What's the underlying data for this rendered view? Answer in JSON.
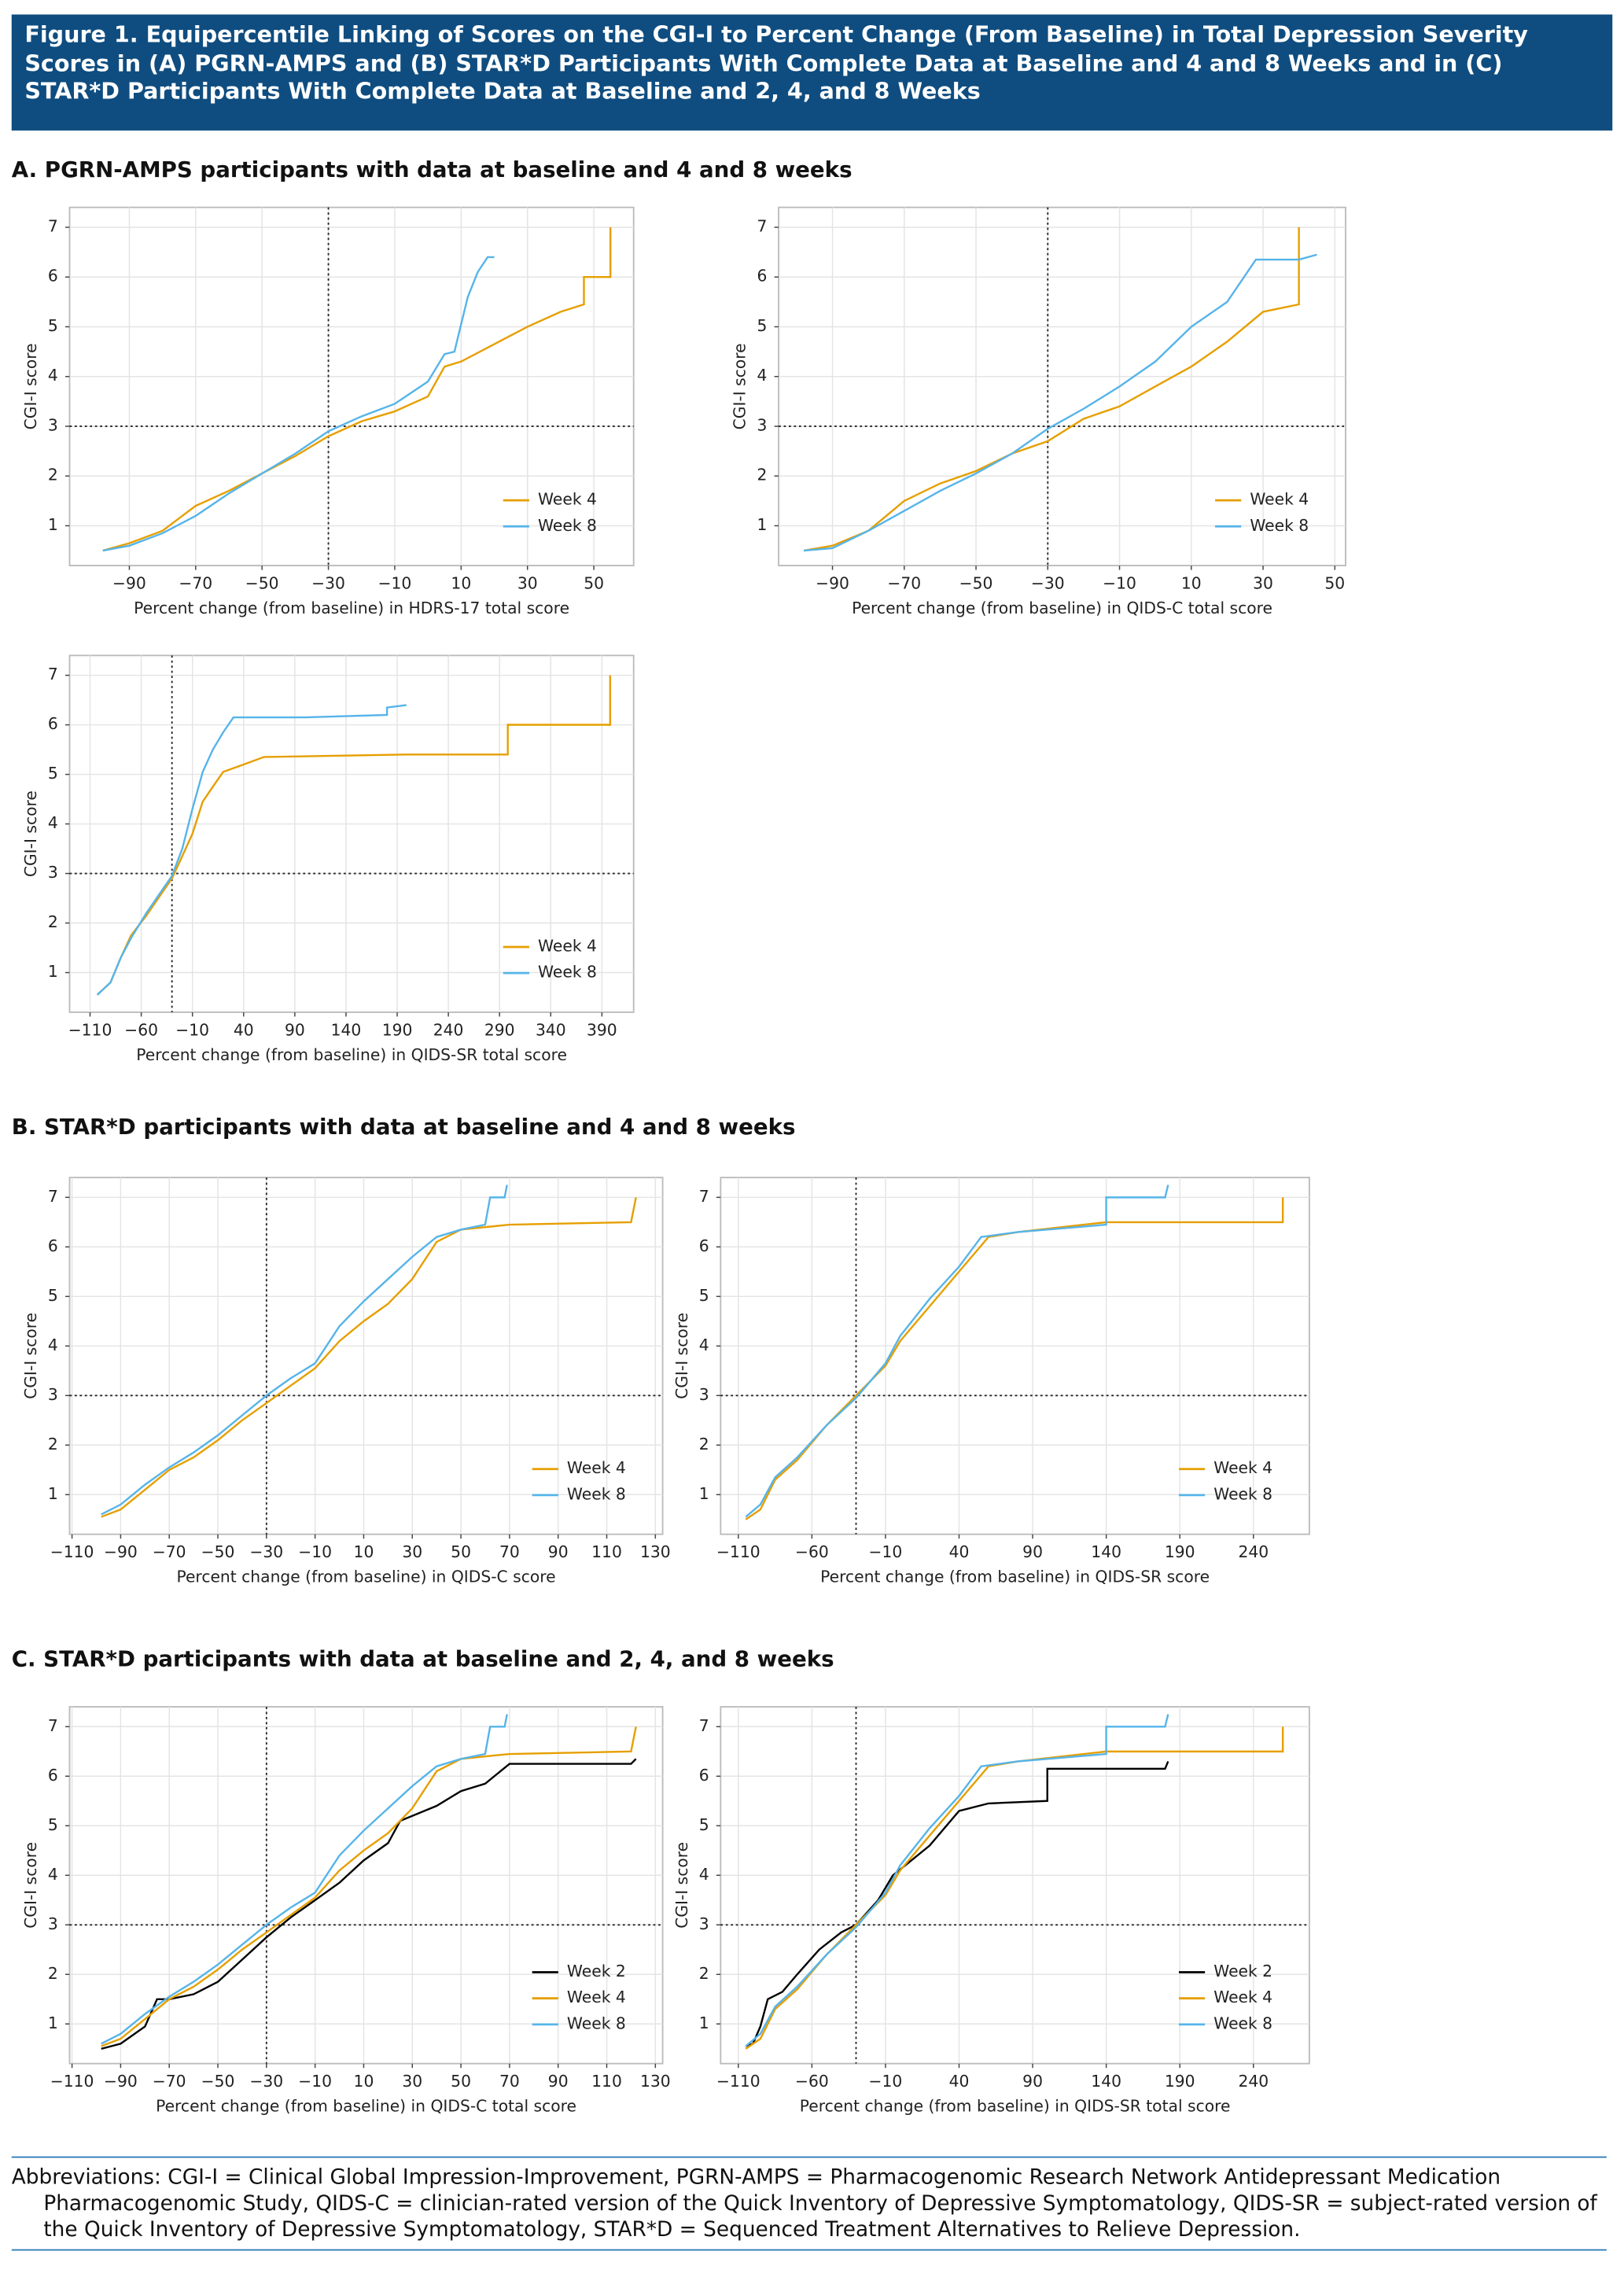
{
  "figure": {
    "title": "Figure 1. Equipercentile Linking of Scores on the CGI-I to Percent Change (From Baseline) in Total Depression Severity Scores in (A) PGRN-AMPS and (B) STAR*D Participants With Complete Data at Baseline and 4 and 8 Weeks and in (C) STAR*D Participants With Complete Data at Baseline and 2, 4, and 8 Weeks",
    "sections": [
      "A. PGRN-AMPS participants with data at baseline and 4 and 8 weeks",
      "B. STAR*D participants with data at baseline and 4 and 8 weeks",
      "C. STAR*D participants with data at baseline and 2, 4, and 8 weeks"
    ],
    "footnote": "Abbreviations: CGI-I = Clinical Global Impression-Improvement, PGRN-AMPS = Pharmacogenomic Research Network Antidepressant Medication Pharmacogenomic Study, QIDS-C = clinician-rated version of the Quick Inventory of Depressive Symptomatology, QIDS-SR = subject-rated version of the Quick Inventory of Depressive Symptomatology, STAR*D = Sequenced Treatment Alternatives to Relieve Depression."
  },
  "chart_data": [
    {
      "type": "line",
      "xlabel": "Percent change (from baseline) in HDRS-17 total score",
      "ylabel": "CGI-I score",
      "xlim": [
        -108,
        62
      ],
      "ylim": [
        0.2,
        7.4
      ],
      "xticks": [
        {
          "value": -90,
          "label": "−90"
        },
        {
          "value": -70,
          "label": "−70"
        },
        {
          "value": -50,
          "label": "−50"
        },
        {
          "value": -30,
          "label": "−30"
        },
        {
          "value": -10,
          "label": "−10"
        },
        10,
        30,
        50
      ],
      "yticks": [
        1,
        2,
        3,
        4,
        5,
        6,
        7
      ],
      "grid": true,
      "ref_x": -30,
      "ref_y": 3,
      "legend": "lower right",
      "series": [
        {
          "name": "Week 4",
          "color": "#E69F00",
          "x": [
            -98,
            -90,
            -80,
            -70,
            -60,
            -50,
            -40,
            -30,
            -20,
            -10,
            0,
            5,
            10,
            20,
            30,
            40,
            47,
            47,
            55,
            55
          ],
          "values": [
            0.5,
            0.65,
            0.9,
            1.4,
            1.7,
            2.05,
            2.4,
            2.8,
            3.1,
            3.3,
            3.6,
            4.2,
            4.3,
            4.65,
            5.0,
            5.3,
            5.45,
            6.0,
            6.0,
            7.0
          ]
        },
        {
          "name": "Week 8",
          "color": "#56B4E9",
          "x": [
            -98,
            -90,
            -80,
            -70,
            -60,
            -50,
            -40,
            -30,
            -20,
            -10,
            0,
            5,
            8,
            12,
            15,
            18,
            20
          ],
          "values": [
            0.5,
            0.6,
            0.85,
            1.2,
            1.65,
            2.05,
            2.45,
            2.9,
            3.2,
            3.45,
            3.9,
            4.45,
            4.5,
            5.6,
            6.1,
            6.4,
            6.4
          ]
        }
      ]
    },
    {
      "type": "line",
      "xlabel": "Percent change (from baseline) in QIDS-C total score",
      "ylabel": "CGI-I score",
      "xlim": [
        -105,
        53
      ],
      "ylim": [
        0.2,
        7.4
      ],
      "xticks": [
        {
          "value": -90,
          "label": "−90"
        },
        {
          "value": -70,
          "label": "−70"
        },
        {
          "value": -50,
          "label": "−50"
        },
        {
          "value": -30,
          "label": "−30"
        },
        {
          "value": -10,
          "label": "−10"
        },
        10,
        30,
        50
      ],
      "yticks": [
        1,
        2,
        3,
        4,
        5,
        6,
        7
      ],
      "grid": true,
      "ref_x": -30,
      "ref_y": 3,
      "legend": "lower right",
      "series": [
        {
          "name": "Week 4",
          "color": "#E69F00",
          "x": [
            -98,
            -90,
            -80,
            -70,
            -60,
            -50,
            -40,
            -30,
            -20,
            -10,
            0,
            10,
            20,
            30,
            40,
            40
          ],
          "values": [
            0.5,
            0.6,
            0.9,
            1.5,
            1.85,
            2.1,
            2.45,
            2.7,
            3.15,
            3.4,
            3.8,
            4.2,
            4.7,
            5.3,
            5.45,
            7.0
          ]
        },
        {
          "name": "Week 8",
          "color": "#56B4E9",
          "x": [
            -98,
            -90,
            -80,
            -70,
            -60,
            -50,
            -40,
            -30,
            -20,
            -10,
            0,
            10,
            20,
            28,
            40,
            45
          ],
          "values": [
            0.5,
            0.55,
            0.9,
            1.3,
            1.7,
            2.05,
            2.45,
            2.95,
            3.35,
            3.8,
            4.3,
            5.0,
            5.5,
            6.35,
            6.35,
            6.45
          ]
        }
      ]
    },
    {
      "type": "line",
      "xlabel": "Percent change (from baseline) in QIDS-SR total score",
      "ylabel": "CGI-I score",
      "xlim": [
        -130,
        421
      ],
      "ylim": [
        0.2,
        7.4
      ],
      "xticks": [
        {
          "value": -110,
          "label": "−110"
        },
        {
          "value": -60,
          "label": "−60"
        },
        {
          "value": -10,
          "label": "−10"
        },
        40,
        90,
        140,
        190,
        240,
        290,
        340,
        390
      ],
      "yticks": [
        1,
        2,
        3,
        4,
        5,
        6,
        7
      ],
      "grid": true,
      "ref_x": -30,
      "ref_y": 3,
      "legend": "lower right",
      "series": [
        {
          "name": "Week 4",
          "color": "#E69F00",
          "x": [
            -103,
            -90,
            -80,
            -70,
            -55,
            -40,
            -30,
            -20,
            -10,
            0,
            10,
            20,
            40,
            60,
            200,
            298,
            298,
            398,
            398
          ],
          "values": [
            0.55,
            0.8,
            1.3,
            1.75,
            2.15,
            2.6,
            2.9,
            3.35,
            3.8,
            4.45,
            4.75,
            5.05,
            5.2,
            5.35,
            5.4,
            5.4,
            6.0,
            6.0,
            7.0
          ]
        },
        {
          "name": "Week 8",
          "color": "#56B4E9",
          "x": [
            -103,
            -90,
            -80,
            -70,
            -55,
            -40,
            -30,
            -20,
            -10,
            0,
            10,
            20,
            30,
            100,
            180,
            180,
            199
          ],
          "values": [
            0.55,
            0.8,
            1.3,
            1.7,
            2.2,
            2.65,
            2.95,
            3.5,
            4.3,
            5.05,
            5.5,
            5.85,
            6.15,
            6.15,
            6.2,
            6.35,
            6.4
          ]
        }
      ]
    },
    {
      "type": "line",
      "xlabel": "Percent change (from baseline) in QIDS-C score",
      "ylabel": "CGI-I score",
      "xlim": [
        -111,
        133
      ],
      "ylim": [
        0.2,
        7.4
      ],
      "xticks": [
        {
          "value": -110,
          "label": "−110"
        },
        {
          "value": -90,
          "label": "−90"
        },
        {
          "value": -70,
          "label": "−70"
        },
        {
          "value": -50,
          "label": "−50"
        },
        {
          "value": -30,
          "label": "−30"
        },
        {
          "value": -10,
          "label": "−10"
        },
        10,
        30,
        50,
        70,
        90,
        110,
        130
      ],
      "yticks": [
        1,
        2,
        3,
        4,
        5,
        6,
        7
      ],
      "grid": true,
      "ref_x": -30,
      "ref_y": 3,
      "legend": "lower right",
      "series": [
        {
          "name": "Week 4",
          "color": "#E69F00",
          "x": [
            -98,
            -90,
            -80,
            -70,
            -60,
            -50,
            -40,
            -30,
            -20,
            -10,
            0,
            10,
            20,
            30,
            40,
            50,
            70,
            120,
            122
          ],
          "values": [
            0.55,
            0.7,
            1.1,
            1.5,
            1.75,
            2.1,
            2.5,
            2.85,
            3.2,
            3.55,
            4.1,
            4.5,
            4.85,
            5.35,
            6.1,
            6.35,
            6.45,
            6.5,
            7.0
          ]
        },
        {
          "name": "Week 8",
          "color": "#56B4E9",
          "x": [
            -98,
            -90,
            -80,
            -70,
            -60,
            -50,
            -40,
            -30,
            -20,
            -10,
            0,
            10,
            20,
            30,
            40,
            50,
            60,
            62,
            68,
            69
          ],
          "values": [
            0.6,
            0.8,
            1.2,
            1.55,
            1.85,
            2.2,
            2.6,
            3.0,
            3.35,
            3.65,
            4.4,
            4.9,
            5.35,
            5.8,
            6.2,
            6.35,
            6.45,
            7.0,
            7.0,
            7.25
          ]
        }
      ]
    },
    {
      "type": "line",
      "xlabel": "Percent change (from baseline) in QIDS-SR score",
      "ylabel": "CGI-I score",
      "xlim": [
        -122,
        278
      ],
      "ylim": [
        0.2,
        7.4
      ],
      "xticks": [
        {
          "value": -110,
          "label": "−110"
        },
        {
          "value": -60,
          "label": "−60"
        },
        {
          "value": -10,
          "label": "−10"
        },
        40,
        90,
        140,
        190,
        240
      ],
      "yticks": [
        1,
        2,
        3,
        4,
        5,
        6,
        7
      ],
      "grid": true,
      "ref_x": -30,
      "ref_y": 3,
      "legend": "lower right",
      "series": [
        {
          "name": "Week 4",
          "color": "#E69F00",
          "x": [
            -105,
            -95,
            -85,
            -70,
            -50,
            -30,
            -10,
            0,
            20,
            40,
            60,
            80,
            140,
            260,
            260
          ],
          "values": [
            0.5,
            0.7,
            1.3,
            1.7,
            2.4,
            3.0,
            3.6,
            4.1,
            4.8,
            5.5,
            6.2,
            6.3,
            6.5,
            6.5,
            7.0
          ]
        },
        {
          "name": "Week 8",
          "color": "#56B4E9",
          "x": [
            -105,
            -95,
            -85,
            -70,
            -50,
            -30,
            -10,
            0,
            20,
            40,
            55,
            80,
            140,
            140,
            180,
            182
          ],
          "values": [
            0.55,
            0.8,
            1.35,
            1.75,
            2.4,
            2.95,
            3.65,
            4.2,
            4.95,
            5.6,
            6.2,
            6.3,
            6.45,
            7.0,
            7.0,
            7.25
          ]
        }
      ]
    },
    {
      "type": "line",
      "xlabel": "Percent change (from baseline) in QIDS-C total score",
      "ylabel": "CGI-I score",
      "xlim": [
        -111,
        133
      ],
      "ylim": [
        0.2,
        7.4
      ],
      "xticks": [
        {
          "value": -110,
          "label": "−110"
        },
        {
          "value": -90,
          "label": "−90"
        },
        {
          "value": -70,
          "label": "−70"
        },
        {
          "value": -50,
          "label": "−50"
        },
        {
          "value": -30,
          "label": "−30"
        },
        {
          "value": -10,
          "label": "−10"
        },
        10,
        30,
        50,
        70,
        90,
        110,
        130
      ],
      "yticks": [
        1,
        2,
        3,
        4,
        5,
        6,
        7
      ],
      "grid": true,
      "ref_x": -30,
      "ref_y": 3,
      "legend": "lower right",
      "series": [
        {
          "name": "Week 2",
          "color": "#000000",
          "x": [
            -98,
            -90,
            -80,
            -75,
            -70,
            -60,
            -50,
            -40,
            -30,
            -20,
            -10,
            0,
            10,
            20,
            25,
            40,
            50,
            60,
            70,
            120,
            122
          ],
          "values": [
            0.5,
            0.6,
            0.95,
            1.5,
            1.5,
            1.6,
            1.85,
            2.3,
            2.75,
            3.15,
            3.5,
            3.85,
            4.3,
            4.65,
            5.1,
            5.4,
            5.7,
            5.85,
            6.25,
            6.25,
            6.35
          ]
        },
        {
          "name": "Week 4",
          "color": "#E69F00",
          "x": [
            -98,
            -90,
            -80,
            -70,
            -60,
            -50,
            -40,
            -30,
            -20,
            -10,
            0,
            10,
            20,
            30,
            40,
            50,
            70,
            120,
            122
          ],
          "values": [
            0.55,
            0.7,
            1.1,
            1.5,
            1.75,
            2.1,
            2.5,
            2.85,
            3.2,
            3.55,
            4.1,
            4.5,
            4.85,
            5.35,
            6.1,
            6.35,
            6.45,
            6.5,
            7.0
          ]
        },
        {
          "name": "Week 8",
          "color": "#56B4E9",
          "x": [
            -98,
            -90,
            -80,
            -70,
            -60,
            -50,
            -40,
            -30,
            -20,
            -10,
            0,
            10,
            20,
            30,
            40,
            50,
            60,
            62,
            68,
            69
          ],
          "values": [
            0.6,
            0.8,
            1.2,
            1.55,
            1.85,
            2.2,
            2.6,
            3.0,
            3.35,
            3.65,
            4.4,
            4.9,
            5.35,
            5.8,
            6.2,
            6.35,
            6.45,
            7.0,
            7.0,
            7.25
          ]
        }
      ]
    },
    {
      "type": "line",
      "xlabel": "Percent change (from baseline) in QIDS-SR total score",
      "ylabel": "CGI-I score",
      "xlim": [
        -122,
        278
      ],
      "ylim": [
        0.2,
        7.4
      ],
      "xticks": [
        {
          "value": -110,
          "label": "−110"
        },
        {
          "value": -60,
          "label": "−60"
        },
        {
          "value": -10,
          "label": "−10"
        },
        40,
        90,
        140,
        190,
        240
      ],
      "yticks": [
        1,
        2,
        3,
        4,
        5,
        6,
        7
      ],
      "grid": true,
      "ref_x": -30,
      "ref_y": 3,
      "legend": "lower right",
      "series": [
        {
          "name": "Week 2",
          "color": "#000000",
          "x": [
            -105,
            -100,
            -95,
            -90,
            -80,
            -70,
            -55,
            -40,
            -30,
            -15,
            -5,
            20,
            40,
            60,
            100,
            100,
            180,
            182
          ],
          "values": [
            0.55,
            0.6,
            0.95,
            1.5,
            1.65,
            2.0,
            2.5,
            2.85,
            3.0,
            3.5,
            4.0,
            4.6,
            5.3,
            5.45,
            5.5,
            6.15,
            6.15,
            6.3
          ]
        },
        {
          "name": "Week 4",
          "color": "#E69F00",
          "x": [
            -105,
            -95,
            -85,
            -70,
            -50,
            -30,
            -10,
            0,
            20,
            40,
            60,
            80,
            140,
            260,
            260
          ],
          "values": [
            0.5,
            0.7,
            1.3,
            1.7,
            2.4,
            3.0,
            3.6,
            4.1,
            4.8,
            5.5,
            6.2,
            6.3,
            6.5,
            6.5,
            7.0
          ]
        },
        {
          "name": "Week 8",
          "color": "#56B4E9",
          "x": [
            -105,
            -95,
            -85,
            -70,
            -50,
            -30,
            -10,
            0,
            20,
            40,
            55,
            80,
            140,
            140,
            180,
            182
          ],
          "values": [
            0.55,
            0.8,
            1.35,
            1.75,
            2.4,
            2.95,
            3.65,
            4.2,
            4.95,
            5.6,
            6.2,
            6.3,
            6.45,
            7.0,
            7.0,
            7.25
          ]
        }
      ]
    }
  ]
}
